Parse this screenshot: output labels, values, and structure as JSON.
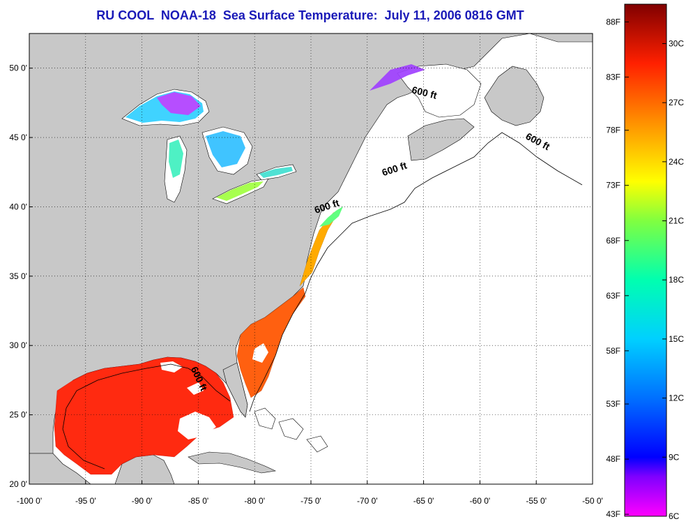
{
  "title": "RU COOL  NOAA-18  Sea Surface Temperature:  July 11, 2006 0816 GMT",
  "map": {
    "lon_range": [
      -100,
      -50
    ],
    "lat_range": [
      20,
      52.5
    ],
    "grid": true,
    "x_ticks": [
      {
        "value": -100,
        "label": "-100 0'"
      },
      {
        "value": -95,
        "label": "-95 0'"
      },
      {
        "value": -90,
        "label": "-90 0'"
      },
      {
        "value": -85,
        "label": "-85 0'"
      },
      {
        "value": -80,
        "label": "-80 0'"
      },
      {
        "value": -75,
        "label": "-75 0'"
      },
      {
        "value": -70,
        "label": "-70 0'"
      },
      {
        "value": -65,
        "label": "-65 0'"
      },
      {
        "value": -60,
        "label": "-60 0'"
      },
      {
        "value": -55,
        "label": "-55 0'"
      },
      {
        "value": -50,
        "label": "-50 0'"
      }
    ],
    "y_ticks": [
      {
        "value": 20,
        "label": "20 0'"
      },
      {
        "value": 25,
        "label": "25 0'"
      },
      {
        "value": 30,
        "label": "30 0'"
      },
      {
        "value": 35,
        "label": "35 0'"
      },
      {
        "value": 40,
        "label": "40 0'"
      },
      {
        "value": 45,
        "label": "45 0'"
      },
      {
        "value": 50,
        "label": "50 0'"
      }
    ],
    "contour_labels": [
      {
        "text": "600 ft",
        "lon": -65.0,
        "lat": 48.0,
        "rotate": 14
      },
      {
        "text": "600 ft",
        "lon": -55.0,
        "lat": 44.5,
        "rotate": 28
      },
      {
        "text": "600 ft",
        "lon": -67.5,
        "lat": 42.5,
        "rotate": -18
      },
      {
        "text": "600 ft",
        "lon": -73.5,
        "lat": 39.8,
        "rotate": -18
      },
      {
        "text": "600 ft",
        "lon": -85.2,
        "lat": 27.5,
        "rotate": 65
      }
    ],
    "colors": {
      "land": "#c8c8c8",
      "ocean": "#ffffff",
      "sst_gulf": "#ff2a10",
      "sst_southeast": "#ff6010",
      "sst_midatlantic": "#ffaa00",
      "lakes_cold": "#30d0ff",
      "lakes_very_cold": "#b040ff"
    }
  },
  "colorbar": {
    "min_c": 6,
    "max_c": 32,
    "f_ticks": [
      {
        "value_c": 6.1,
        "label": "43F"
      },
      {
        "value_c": 8.9,
        "label": "48F"
      },
      {
        "value_c": 11.7,
        "label": "53F"
      },
      {
        "value_c": 14.4,
        "label": "58F"
      },
      {
        "value_c": 17.2,
        "label": "63F"
      },
      {
        "value_c": 20.0,
        "label": "68F"
      },
      {
        "value_c": 22.8,
        "label": "73F"
      },
      {
        "value_c": 25.6,
        "label": "78F"
      },
      {
        "value_c": 28.3,
        "label": "83F"
      },
      {
        "value_c": 31.1,
        "label": "88F"
      }
    ],
    "c_ticks": [
      {
        "value_c": 6,
        "label": "6C"
      },
      {
        "value_c": 9,
        "label": "9C"
      },
      {
        "value_c": 12,
        "label": "12C"
      },
      {
        "value_c": 15,
        "label": "15C"
      },
      {
        "value_c": 18,
        "label": "18C"
      },
      {
        "value_c": 21,
        "label": "21C"
      },
      {
        "value_c": 24,
        "label": "24C"
      },
      {
        "value_c": 27,
        "label": "27C"
      },
      {
        "value_c": 30,
        "label": "30C"
      }
    ],
    "gradient": [
      {
        "value_c": 6,
        "color": "#ff00ff"
      },
      {
        "value_c": 8,
        "color": "#8000ff"
      },
      {
        "value_c": 9,
        "color": "#0000ff"
      },
      {
        "value_c": 12,
        "color": "#0070ff"
      },
      {
        "value_c": 15,
        "color": "#00d0ff"
      },
      {
        "value_c": 18,
        "color": "#00ffb0"
      },
      {
        "value_c": 21,
        "color": "#80ff40"
      },
      {
        "value_c": 23,
        "color": "#ffff00"
      },
      {
        "value_c": 26,
        "color": "#ff9000"
      },
      {
        "value_c": 29,
        "color": "#ff2000"
      },
      {
        "value_c": 32,
        "color": "#800000"
      }
    ]
  }
}
